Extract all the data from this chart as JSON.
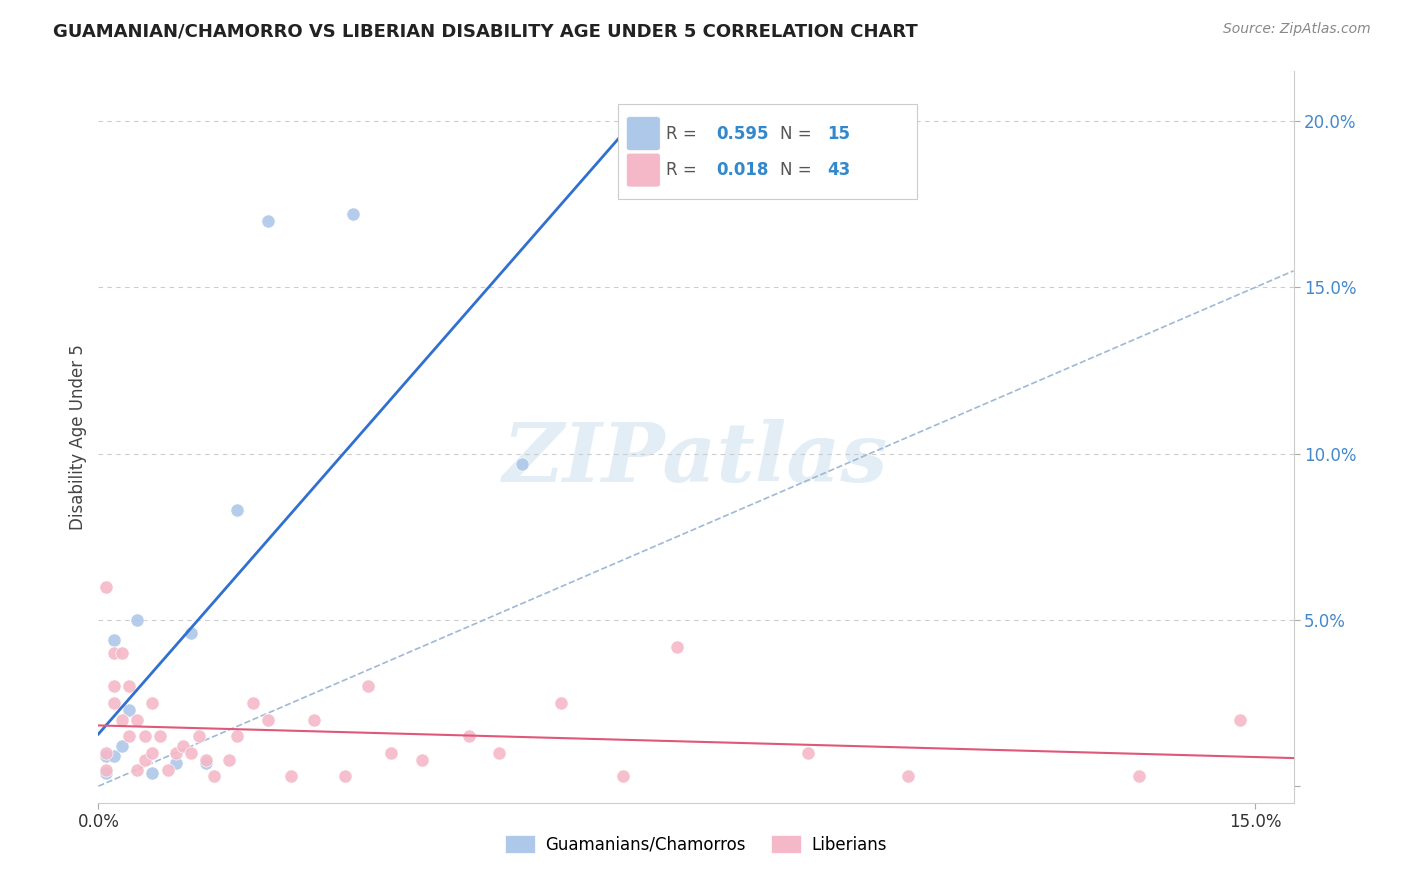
{
  "title": "GUAMANIAN/CHAMORRO VS LIBERIAN DISABILITY AGE UNDER 5 CORRELATION CHART",
  "source": "Source: ZipAtlas.com",
  "ylabel": "Disability Age Under 5",
  "xlim": [
    0.0,
    0.155
  ],
  "ylim": [
    -0.005,
    0.215
  ],
  "yticks": [
    0.0,
    0.05,
    0.1,
    0.15,
    0.2
  ],
  "ytick_labels": [
    "",
    "5.0%",
    "10.0%",
    "15.0%",
    "20.0%"
  ],
  "xticks": [
    0.0,
    0.15
  ],
  "xtick_labels": [
    "0.0%",
    "15.0%"
  ],
  "blue_R": 0.595,
  "blue_N": 15,
  "pink_R": 0.018,
  "pink_N": 43,
  "blue_color": "#adc8e8",
  "pink_color": "#f5b8c8",
  "blue_line_color": "#3070d0",
  "pink_line_color": "#e05878",
  "diagonal_color": "#a0b8d8",
  "watermark": "ZIPatlas",
  "legend_label_blue": "Guamanians/Chamorros",
  "legend_label_pink": "Liberians",
  "blue_x": [
    0.001,
    0.001,
    0.002,
    0.002,
    0.003,
    0.004,
    0.005,
    0.007,
    0.01,
    0.012,
    0.014,
    0.018,
    0.022,
    0.033,
    0.055
  ],
  "blue_y": [
    0.004,
    0.009,
    0.009,
    0.044,
    0.012,
    0.023,
    0.05,
    0.004,
    0.007,
    0.046,
    0.007,
    0.083,
    0.17,
    0.172,
    0.097
  ],
  "pink_x": [
    0.001,
    0.001,
    0.001,
    0.002,
    0.002,
    0.002,
    0.003,
    0.003,
    0.004,
    0.004,
    0.005,
    0.005,
    0.006,
    0.006,
    0.007,
    0.007,
    0.008,
    0.009,
    0.01,
    0.011,
    0.012,
    0.013,
    0.014,
    0.015,
    0.017,
    0.018,
    0.02,
    0.022,
    0.025,
    0.028,
    0.032,
    0.035,
    0.038,
    0.042,
    0.048,
    0.052,
    0.06,
    0.068,
    0.075,
    0.092,
    0.105,
    0.135,
    0.148
  ],
  "pink_y": [
    0.06,
    0.01,
    0.005,
    0.04,
    0.03,
    0.025,
    0.04,
    0.02,
    0.03,
    0.015,
    0.02,
    0.005,
    0.015,
    0.008,
    0.025,
    0.01,
    0.015,
    0.005,
    0.01,
    0.012,
    0.01,
    0.015,
    0.008,
    0.003,
    0.008,
    0.015,
    0.025,
    0.02,
    0.003,
    0.02,
    0.003,
    0.03,
    0.01,
    0.008,
    0.015,
    0.01,
    0.025,
    0.003,
    0.042,
    0.01,
    0.003,
    0.003,
    0.02
  ]
}
